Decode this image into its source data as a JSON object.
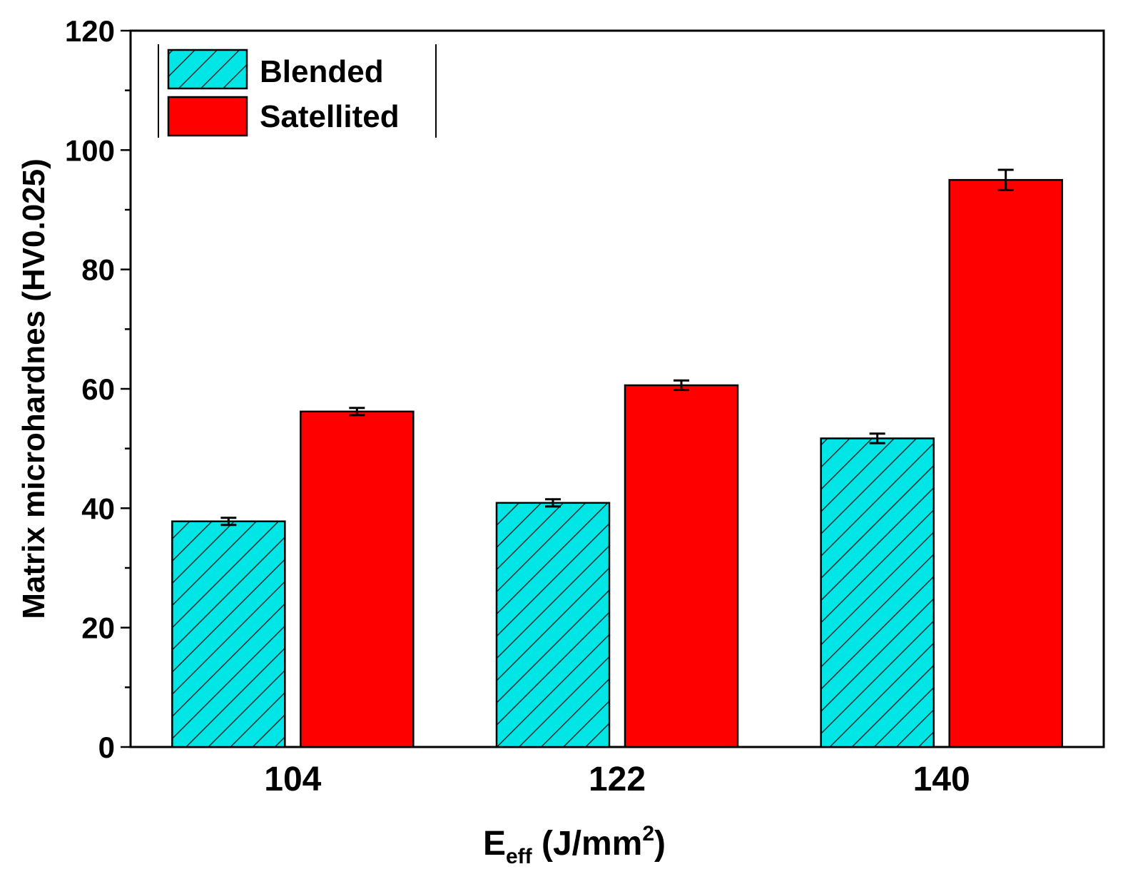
{
  "chart_data": {
    "type": "bar",
    "title": "",
    "xlabel": {
      "base": "E",
      "subscript": "eff",
      "unit_prefix": " (J/mm",
      "superscript": "2",
      "unit_suffix": ")"
    },
    "ylabel": "Matrix microhardnes (HV0.025)",
    "categories": [
      "104",
      "122",
      "140"
    ],
    "ylim": [
      0,
      120
    ],
    "yticks": [
      0,
      20,
      40,
      60,
      80,
      100,
      120
    ],
    "yticks_labels": [
      "0",
      "20",
      "40",
      "60",
      "80",
      "100",
      "120"
    ],
    "series": [
      {
        "name": "Blended",
        "color": "#00e5e5",
        "pattern": "diagonal-hatch",
        "values": [
          37.8,
          40.9,
          51.7
        ],
        "errors": [
          0.6,
          0.6,
          0.8
        ]
      },
      {
        "name": "Satellited",
        "color": "#ff0000",
        "pattern": "solid",
        "values": [
          56.2,
          60.6,
          95.0
        ],
        "errors": [
          0.6,
          0.8,
          1.7
        ]
      }
    ],
    "legend": {
      "position": "top-left",
      "entries": [
        "Blended",
        "Satellited"
      ]
    }
  }
}
